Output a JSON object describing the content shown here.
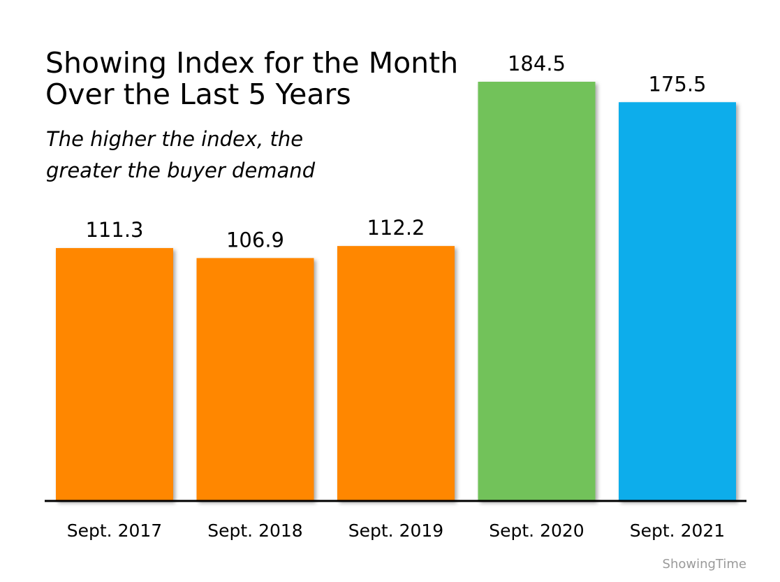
{
  "title_lines": [
    "Showing Index for the Month",
    "Over the Last 5 Years"
  ],
  "subtitle_lines": [
    "The higher the index, the",
    "greater the buyer demand"
  ],
  "source": "ShowingTime",
  "chart_data": {
    "type": "bar",
    "title": "Showing Index for the Month Over the Last 5 Years",
    "subtitle": "The higher the index, the greater the buyer demand",
    "categories": [
      "Sept. 2017",
      "Sept. 2018",
      "Sept. 2019",
      "Sept. 2020",
      "Sept. 2021"
    ],
    "values": [
      111.3,
      106.9,
      112.2,
      184.5,
      175.5
    ],
    "value_labels": [
      "111.3",
      "106.9",
      "112.2",
      "184.5",
      "175.5"
    ],
    "bar_colors": [
      "#FF8700",
      "#FF8700",
      "#FF8700",
      "#72C25A",
      "#0EADEB"
    ],
    "xlabel": "",
    "ylabel": "",
    "ylim": [
      0,
      184.5
    ],
    "grid": false,
    "legend": "none"
  }
}
